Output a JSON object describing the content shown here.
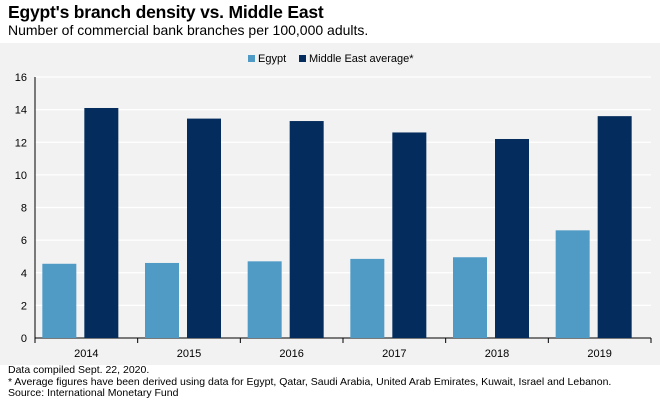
{
  "title": "Egypt's branch density vs. Middle East",
  "subtitle": "Number of commercial bank branches per 100,000 adults.",
  "footnotes": [
    "Data compiled Sept. 22, 2020.",
    "* Average figures have been derived using data for Egypt, Qatar, Saudi Arabia, United Arab Emirates, Kuwait, Israel and Lebanon.",
    "Source: International Monetary Fund"
  ],
  "colors": {
    "egypt": "#4f9bc6",
    "middle_east": "#042c5c",
    "panel_bg": "#f2f2f2",
    "gridline": "#ffffff"
  },
  "chart_data": {
    "type": "bar",
    "categories": [
      "2014",
      "2015",
      "2016",
      "2017",
      "2018",
      "2019"
    ],
    "series": [
      {
        "name": "Egypt",
        "values": [
          4.55,
          4.6,
          4.7,
          4.85,
          4.95,
          6.6
        ]
      },
      {
        "name": "Middle East average*",
        "values": [
          14.1,
          13.45,
          13.3,
          12.6,
          12.2,
          13.6
        ]
      }
    ],
    "ylim": [
      0,
      16
    ],
    "yticks": [
      0,
      2,
      4,
      6,
      8,
      10,
      12,
      14,
      16
    ],
    "xlabel": "",
    "ylabel": "",
    "grid": true,
    "legend": "top-center"
  }
}
